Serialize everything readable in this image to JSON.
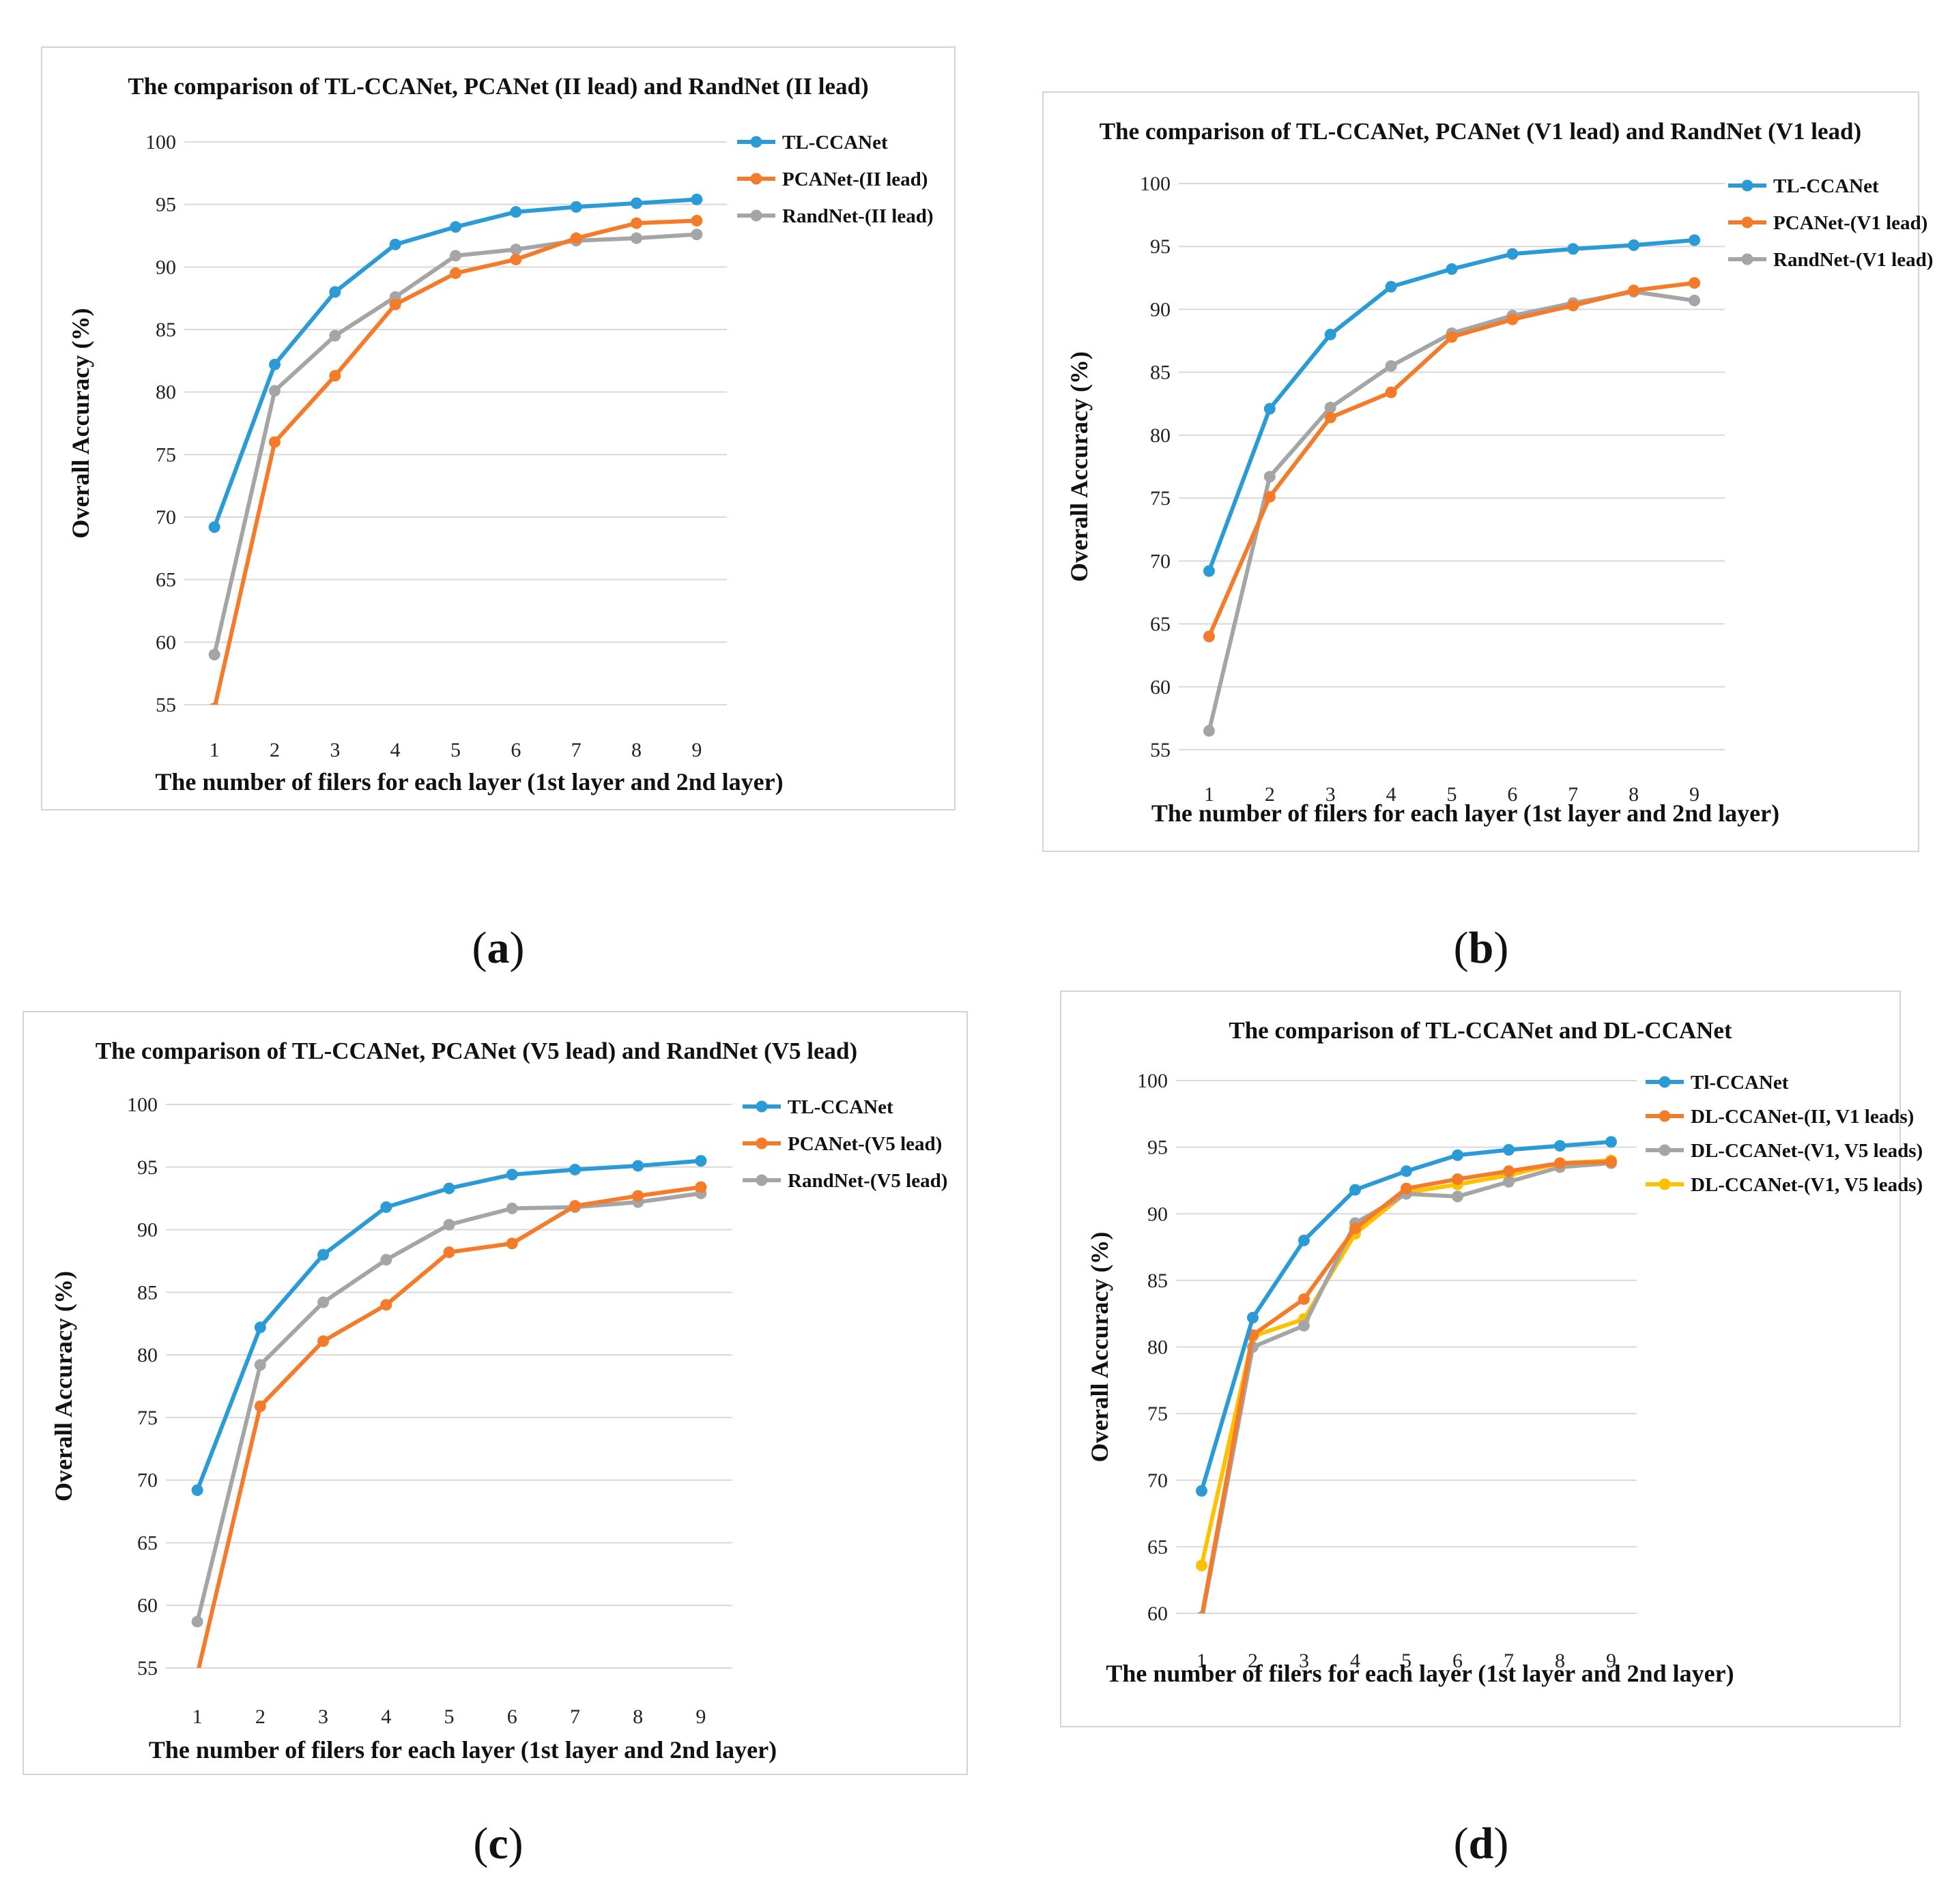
{
  "colors": {
    "blue": "#2b9bd7",
    "orange": "#f47b2a",
    "gray": "#a5a5a5",
    "yellow": "#ffc000"
  },
  "captions": [
    "a",
    "b",
    "c",
    "d"
  ],
  "chart_data": [
    {
      "type": "line",
      "title": "The comparison of TL-CCANet, PCANet (II lead) and RandNet (II lead)",
      "xlabel": "The number of filers for each layer (1st layer and 2nd layer)",
      "ylabel": "Overall Accuracy (%)",
      "categories": [
        "1",
        "2",
        "3",
        "4",
        "5",
        "6",
        "7",
        "8",
        "9"
      ],
      "ylim": [
        55,
        100
      ],
      "yticks": [
        "55",
        "60",
        "65",
        "70",
        "75",
        "80",
        "85",
        "90",
        "95",
        "100"
      ],
      "grid": true,
      "legend": "top-right",
      "series": [
        {
          "name": "TL-CCANet",
          "color": "#2b9bd7",
          "values": [
            69.2,
            82.2,
            88.0,
            91.8,
            93.2,
            94.4,
            94.8,
            95.1,
            95.4
          ]
        },
        {
          "name": "PCANet-(II lead)",
          "color": "#f47b2a",
          "values": [
            54.7,
            76.0,
            81.3,
            87.0,
            89.5,
            90.6,
            92.3,
            93.5,
            93.7
          ]
        },
        {
          "name": "RandNet-(II lead)",
          "color": "#a5a5a5",
          "values": [
            59.0,
            80.1,
            84.5,
            87.6,
            90.9,
            91.4,
            92.1,
            92.3,
            92.6
          ]
        }
      ]
    },
    {
      "type": "line",
      "title": "The comparison of TL-CCANet, PCANet (V1 lead) and RandNet (V1 lead)",
      "xlabel": "The number of filers for each layer (1st layer and 2nd layer)",
      "ylabel": "Overall Accuracy (%)",
      "categories": [
        "1",
        "2",
        "3",
        "4",
        "5",
        "6",
        "7",
        "8",
        "9"
      ],
      "ylim": [
        55,
        100
      ],
      "yticks": [
        "55",
        "60",
        "65",
        "70",
        "75",
        "80",
        "85",
        "90",
        "95",
        "100"
      ],
      "grid": true,
      "legend": "top-right",
      "series": [
        {
          "name": "TL-CCANet",
          "color": "#2b9bd7",
          "values": [
            69.2,
            82.1,
            88.0,
            91.8,
            93.2,
            94.4,
            94.8,
            95.1,
            95.5
          ]
        },
        {
          "name": "PCANet-(V1 lead)",
          "color": "#f47b2a",
          "values": [
            64.0,
            75.1,
            81.4,
            83.4,
            87.8,
            89.2,
            90.3,
            91.5,
            92.1
          ]
        },
        {
          "name": "RandNet-(V1 lead)",
          "color": "#a5a5a5",
          "values": [
            56.5,
            76.7,
            82.2,
            85.5,
            88.1,
            89.5,
            90.5,
            91.4,
            90.7
          ]
        }
      ]
    },
    {
      "type": "line",
      "title": "The comparison of TL-CCANet, PCANet (V5 lead) and RandNet (V5 lead)",
      "xlabel": "The number of filers for each layer (1st layer and 2nd layer)",
      "ylabel": "Overall Accuracy (%)",
      "categories": [
        "1",
        "2",
        "3",
        "4",
        "5",
        "6",
        "7",
        "8",
        "9"
      ],
      "ylim": [
        55,
        100
      ],
      "yticks": [
        "55",
        "60",
        "65",
        "70",
        "75",
        "80",
        "85",
        "90",
        "95",
        "100"
      ],
      "grid": true,
      "legend": "top-right",
      "series": [
        {
          "name": "TL-CCANet",
          "color": "#2b9bd7",
          "values": [
            69.2,
            82.2,
            88.0,
            91.8,
            93.3,
            94.4,
            94.8,
            95.1,
            95.5
          ]
        },
        {
          "name": "PCANet-(V5 lead)",
          "color": "#f47b2a",
          "values": [
            54.5,
            75.9,
            81.1,
            84.0,
            88.2,
            88.9,
            91.9,
            92.7,
            93.4
          ]
        },
        {
          "name": "RandNet-(V5 lead)",
          "color": "#a5a5a5",
          "values": [
            58.7,
            79.2,
            84.2,
            87.6,
            90.4,
            91.7,
            91.8,
            92.2,
            92.9
          ]
        }
      ]
    },
    {
      "type": "line",
      "title": "The comparison of TL-CCANet and DL-CCANet",
      "xlabel": "The number of filers for each layer (1st layer and 2nd layer)",
      "ylabel": "Overall Accuracy (%)",
      "categories": [
        "1",
        "2",
        "3",
        "4",
        "5",
        "6",
        "7",
        "8",
        "9"
      ],
      "ylim": [
        60,
        100
      ],
      "yticks": [
        "60",
        "65",
        "70",
        "75",
        "80",
        "85",
        "90",
        "95",
        "100"
      ],
      "grid": true,
      "legend": "top-right",
      "series": [
        {
          "name": "Tl-CCANet",
          "color": "#2b9bd7",
          "values": [
            69.2,
            82.2,
            88.0,
            91.8,
            93.2,
            94.4,
            94.8,
            95.1,
            95.4
          ]
        },
        {
          "name": "DL-CCANet-(II, V1 leads)",
          "color": "#f47b2a",
          "values": [
            59.7,
            80.9,
            83.6,
            88.9,
            91.9,
            92.6,
            93.2,
            93.8,
            93.9
          ]
        },
        {
          "name": "DL-CCANet-(V1, V5 leads)",
          "color": "#a5a5a5",
          "values": [
            59.5,
            80.0,
            81.6,
            89.3,
            91.5,
            91.3,
            92.4,
            93.5,
            93.8
          ]
        },
        {
          "name": "DL-CCANet-(V1, V5 leads)",
          "color": "#ffc000",
          "values": [
            63.6,
            80.8,
            82.1,
            88.5,
            91.6,
            92.2,
            92.9,
            93.8,
            94.0
          ]
        }
      ]
    }
  ]
}
